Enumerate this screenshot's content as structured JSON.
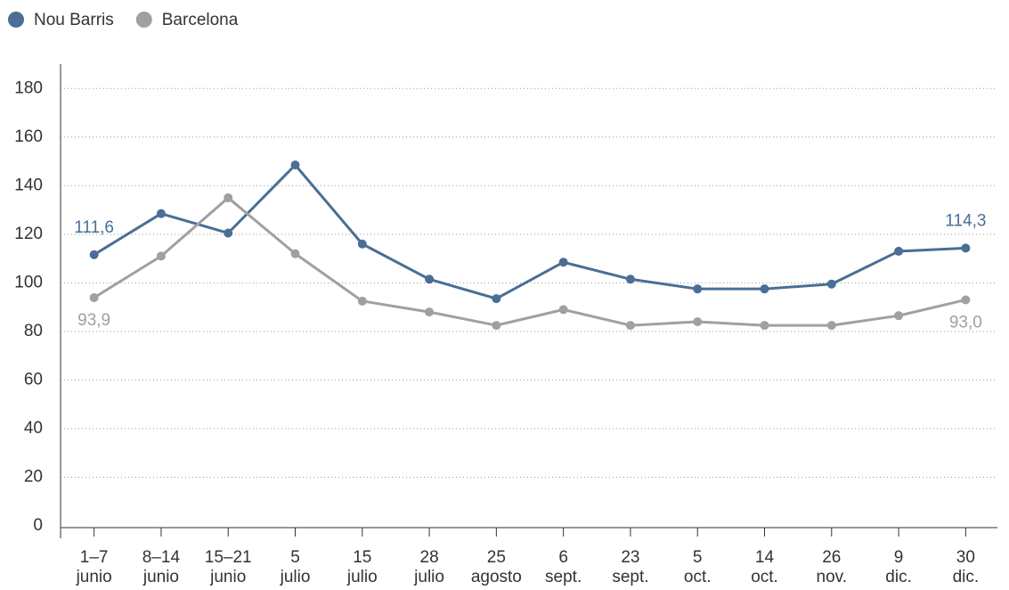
{
  "chart_data": {
    "type": "line",
    "categories": [
      [
        "1–7",
        "junio"
      ],
      [
        "8–14",
        "junio"
      ],
      [
        "15–21",
        "junio"
      ],
      [
        "5",
        "julio"
      ],
      [
        "15",
        "julio"
      ],
      [
        "28",
        "julio"
      ],
      [
        "25",
        "agosto"
      ],
      [
        "6",
        "sept."
      ],
      [
        "23",
        "sept."
      ],
      [
        "5",
        "oct."
      ],
      [
        "14",
        "oct."
      ],
      [
        "26",
        "nov."
      ],
      [
        "9",
        "dic."
      ],
      [
        "30",
        "dic."
      ]
    ],
    "series": [
      {
        "name": "Nou Barris",
        "color": "#4a6e96",
        "values": [
          111.6,
          128.5,
          120.5,
          148.5,
          116,
          101.5,
          93.5,
          108.5,
          101.5,
          97.5,
          97.5,
          99.5,
          113,
          114.3
        ],
        "value_labels": [
          "111,6",
          null,
          null,
          null,
          null,
          null,
          null,
          null,
          null,
          null,
          null,
          null,
          null,
          "114,3"
        ]
      },
      {
        "name": "Barcelona",
        "color": "#a0a0a0",
        "values": [
          93.9,
          111,
          135,
          112,
          92.5,
          88,
          82.5,
          89,
          82.5,
          84,
          82.5,
          82.5,
          86.5,
          93.0
        ],
        "value_labels": [
          "93,9",
          null,
          null,
          null,
          null,
          null,
          null,
          null,
          null,
          null,
          null,
          null,
          null,
          "93,0"
        ]
      }
    ],
    "ylim": [
      0,
      190
    ],
    "yticks": [
      0,
      20,
      40,
      60,
      80,
      100,
      120,
      140,
      160,
      180
    ],
    "grid": true
  }
}
